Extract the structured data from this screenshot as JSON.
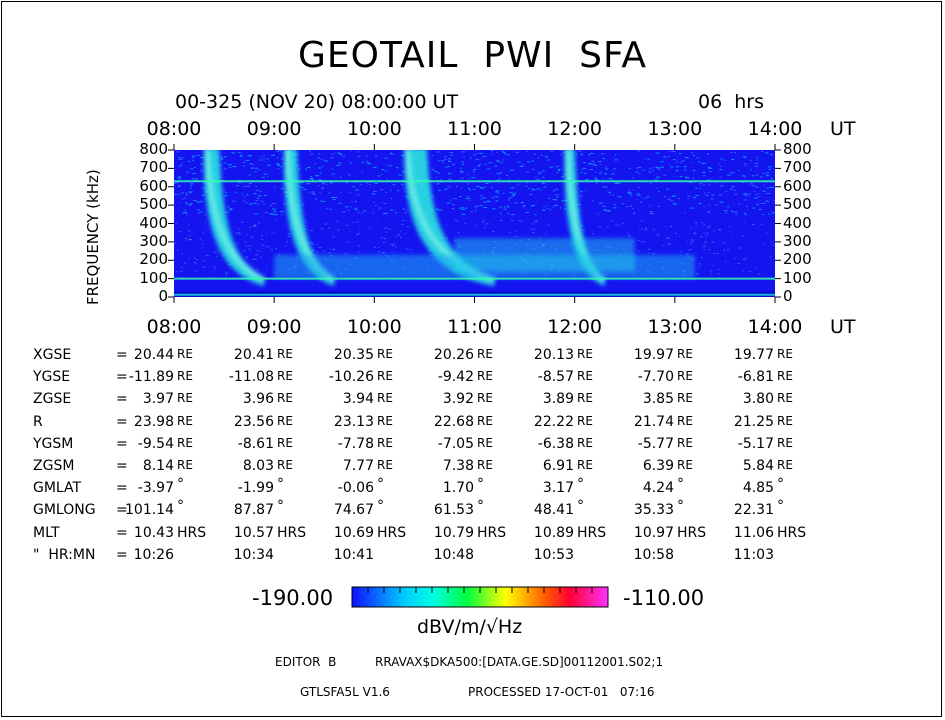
{
  "chart_data": {
    "type": "heatmap",
    "title": "GEOTAIL  PWI  SFA",
    "subtitle": "00-325 (NOV 20) 08:00:00 UT",
    "duration": "06  hrs",
    "xlabel": "UT",
    "ylabel": "FREQUENCY (kHz)",
    "x_ticks": [
      "08:00",
      "09:00",
      "10:00",
      "11:00",
      "12:00",
      "13:00",
      "14:00"
    ],
    "x_range_hours": [
      8,
      14
    ],
    "y_ticks": [
      0,
      100,
      200,
      300,
      400,
      500,
      600,
      700,
      800
    ],
    "ylim": [
      0,
      800
    ],
    "colorbar": {
      "min": "-190.00",
      "max": "-110.00",
      "min_value": -190,
      "max_value": -110,
      "unit": "dBV/m/√Hz"
    },
    "features": [
      {
        "kind": "type-III burst",
        "start_hour": 8.3,
        "end_hour": 8.9
      },
      {
        "kind": "type-III burst",
        "start_hour": 9.1,
        "end_hour": 9.6
      },
      {
        "kind": "type-III burst",
        "start_hour": 10.3,
        "end_hour": 11.2
      },
      {
        "kind": "type-III burst",
        "start_hour": 11.9,
        "end_hour": 12.3
      },
      {
        "kind": "continuum",
        "freq_khz": 630
      },
      {
        "kind": "continuum",
        "freq_khz": 100
      }
    ]
  },
  "ephemeris": {
    "rows": [
      {
        "label": "XGSE",
        "unit": "RE",
        "values": [
          "20.44",
          "20.41",
          "20.35",
          "20.26",
          "20.13",
          "19.97",
          "19.77"
        ]
      },
      {
        "label": "YGSE",
        "unit": "RE",
        "values": [
          "-11.89",
          "-11.08",
          "-10.26",
          "-9.42",
          "-8.57",
          "-7.70",
          "-6.81"
        ]
      },
      {
        "label": "ZGSE",
        "unit": "RE",
        "values": [
          "3.97",
          "3.96",
          "3.94",
          "3.92",
          "3.89",
          "3.85",
          "3.80"
        ]
      },
      {
        "label": "R",
        "unit": "RE",
        "values": [
          "23.98",
          "23.56",
          "23.13",
          "22.68",
          "22.22",
          "21.74",
          "21.25"
        ]
      },
      {
        "label": "YGSM",
        "unit": "RE",
        "values": [
          "-9.54",
          "-8.61",
          "-7.78",
          "-7.05",
          "-6.38",
          "-5.77",
          "-5.17"
        ]
      },
      {
        "label": "ZGSM",
        "unit": "RE",
        "values": [
          "8.14",
          "8.03",
          "7.77",
          "7.38",
          "6.91",
          "6.39",
          "5.84"
        ]
      },
      {
        "label": "GMLAT",
        "unit": "°",
        "values": [
          "-3.97",
          "-1.99",
          "-0.06",
          "1.70",
          "3.17",
          "4.24",
          "4.85"
        ]
      },
      {
        "label": "GMLONG",
        "unit": "°",
        "values": [
          "101.14",
          "87.87",
          "74.67",
          "61.53",
          "48.41",
          "35.33",
          "22.31"
        ]
      },
      {
        "label": "MLT",
        "unit": "HRS",
        "values": [
          "10.43",
          "10.57",
          "10.69",
          "10.79",
          "10.89",
          "10.97",
          "11.06"
        ]
      },
      {
        "label": "\"  HR:MN",
        "unit": "",
        "values": [
          "10:26",
          "10:34",
          "10:41",
          "10:48",
          "10:53",
          "10:58",
          "11:03"
        ]
      }
    ]
  },
  "footer": {
    "editor": "EDITOR  B",
    "path": "RRAVAX$DKA500:[DATA.GE.SD]00112001.S02;1",
    "version": "GTLSFA5L V1.6",
    "processed": "PROCESSED 17-OCT-01   07:16"
  }
}
